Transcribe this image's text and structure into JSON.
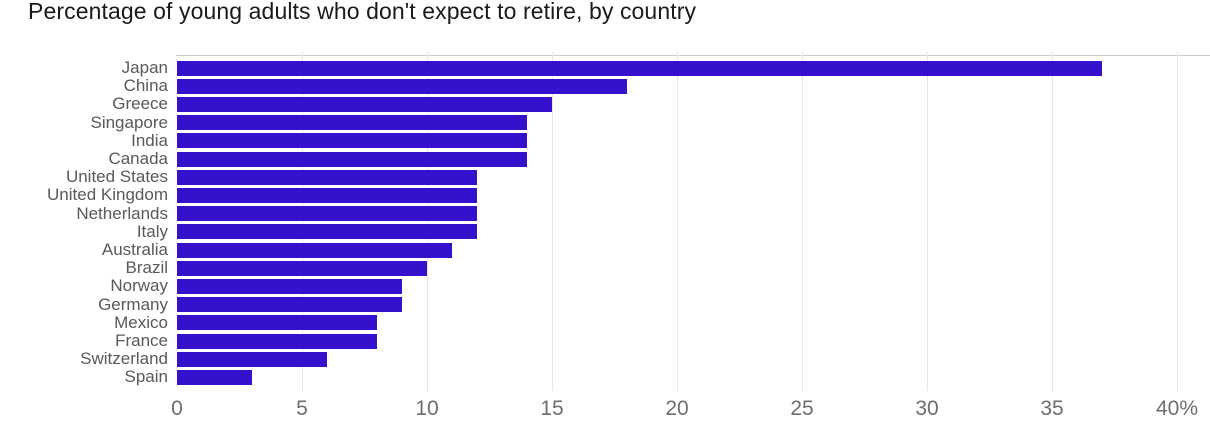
{
  "chart_data": {
    "type": "bar",
    "orientation": "horizontal",
    "title": "Percentage of young adults who don't expect to retire, by country",
    "categories": [
      "Japan",
      "China",
      "Greece",
      "Singapore",
      "India",
      "Canada",
      "United States",
      "United Kingdom",
      "Netherlands",
      "Italy",
      "Australia",
      "Brazil",
      "Norway",
      "Germany",
      "Mexico",
      "France",
      "Switzerland",
      "Spain"
    ],
    "values": [
      37,
      18,
      15,
      14,
      14,
      14,
      12,
      12,
      12,
      12,
      11,
      10,
      9,
      9,
      8,
      8,
      6,
      3
    ],
    "xlabel": "",
    "ylabel": "",
    "xlim": [
      0,
      40
    ],
    "x_ticks": [
      0,
      5,
      10,
      15,
      20,
      25,
      30,
      35,
      40
    ],
    "x_tick_labels": [
      "0",
      "5",
      "10",
      "15",
      "20",
      "25",
      "30",
      "35",
      "40%"
    ],
    "grid": "vertical-only",
    "legend": "none",
    "colors": {
      "bar": "#3511CD",
      "grid": "#e6e6e6",
      "axis_line": "#cdcdcd",
      "category_label": "#58595b",
      "tick_label": "#6e6e6e",
      "title": "#1a1a1a",
      "background": "#ffffff"
    }
  }
}
